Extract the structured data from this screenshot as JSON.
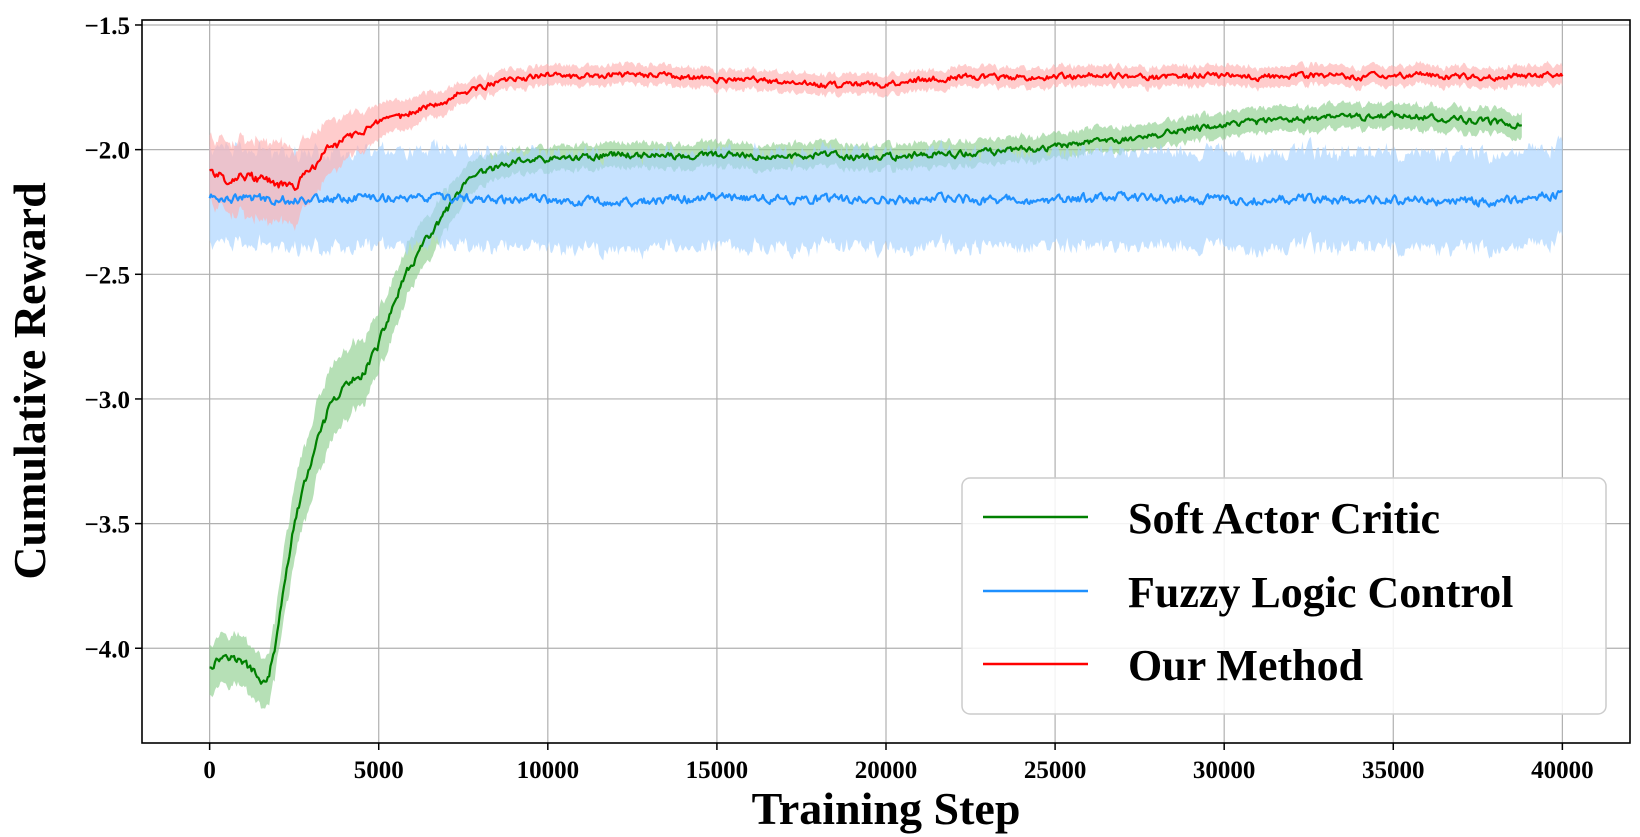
{
  "chart_data": {
    "type": "line",
    "title": "",
    "xlabel": "Training Step",
    "ylabel": "Cumulative Reward",
    "xlim": [
      -2000,
      42000
    ],
    "ylim": [
      -4.38,
      -1.48
    ],
    "x_ticks": [
      0,
      5000,
      10000,
      15000,
      20000,
      25000,
      30000,
      35000,
      40000
    ],
    "x_tick_labels": [
      "0",
      "5000",
      "10000",
      "15000",
      "20000",
      "25000",
      "30000",
      "35000",
      "40000"
    ],
    "y_ticks": [
      -4.0,
      -3.5,
      -3.0,
      -2.5,
      -2.0,
      -1.5
    ],
    "y_tick_labels": [
      "−4.0",
      "−3.5",
      "−3.0",
      "−2.5",
      "−2.0",
      "−1.5"
    ],
    "grid": true,
    "legend_position": "bottom-right",
    "series": [
      {
        "name": "Soft Actor Critic",
        "color": "#008000",
        "band_color": "#8fcf8f",
        "x": [
          0,
          500,
          1000,
          1500,
          1700,
          2000,
          2200,
          2500,
          3000,
          3500,
          4000,
          4500,
          5000,
          5500,
          6000,
          6500,
          7000,
          7500,
          8000,
          8500,
          9000,
          9500,
          10000,
          11000,
          12000,
          13000,
          14000,
          15000,
          16000,
          17000,
          18000,
          19000,
          20000,
          21000,
          22000,
          23000,
          24000,
          25000,
          26000,
          27000,
          28000,
          29000,
          30000,
          31000,
          32000,
          33000,
          34000,
          35000,
          36000,
          37000,
          38000,
          38800
        ],
        "y": [
          -4.07,
          -4.02,
          -4.06,
          -4.12,
          -4.15,
          -3.95,
          -3.75,
          -3.5,
          -3.25,
          -3.05,
          -2.95,
          -2.9,
          -2.78,
          -2.6,
          -2.45,
          -2.35,
          -2.25,
          -2.15,
          -2.1,
          -2.07,
          -2.05,
          -2.04,
          -2.04,
          -2.03,
          -2.02,
          -2.02,
          -2.03,
          -2.02,
          -2.03,
          -2.03,
          -2.02,
          -2.03,
          -2.03,
          -2.02,
          -2.02,
          -2.01,
          -2.0,
          -1.99,
          -1.97,
          -1.96,
          -1.94,
          -1.92,
          -1.9,
          -1.89,
          -1.88,
          -1.87,
          -1.87,
          -1.86,
          -1.87,
          -1.88,
          -1.89,
          -1.9
        ],
        "band": [
          0.1,
          0.1,
          0.1,
          0.1,
          0.1,
          0.12,
          0.14,
          0.15,
          0.15,
          0.15,
          0.14,
          0.13,
          0.12,
          0.11,
          0.1,
          0.09,
          0.08,
          0.07,
          0.06,
          0.05,
          0.05,
          0.05,
          0.05,
          0.05,
          0.05,
          0.05,
          0.05,
          0.05,
          0.05,
          0.05,
          0.05,
          0.05,
          0.05,
          0.05,
          0.05,
          0.05,
          0.05,
          0.05,
          0.05,
          0.05,
          0.05,
          0.05,
          0.05,
          0.05,
          0.05,
          0.05,
          0.05,
          0.05,
          0.05,
          0.05,
          0.05,
          0.05
        ]
      },
      {
        "name": "Fuzzy Logic Control",
        "color": "#1e90ff",
        "band_color": "#a8d2ff",
        "x": [
          0,
          2500,
          5000,
          7500,
          10000,
          12500,
          15000,
          17500,
          20000,
          22500,
          25000,
          27500,
          30000,
          32500,
          35000,
          37500,
          40000
        ],
        "y": [
          -2.19,
          -2.2,
          -2.19,
          -2.2,
          -2.2,
          -2.21,
          -2.19,
          -2.2,
          -2.2,
          -2.2,
          -2.2,
          -2.19,
          -2.2,
          -2.2,
          -2.2,
          -2.21,
          -2.18
        ],
        "band": [
          0.19,
          0.19,
          0.19,
          0.19,
          0.19,
          0.19,
          0.19,
          0.19,
          0.19,
          0.19,
          0.19,
          0.19,
          0.19,
          0.19,
          0.19,
          0.19,
          0.19
        ]
      },
      {
        "name": "Our Method",
        "color": "#ff0000",
        "band_color": "#ffb0b0",
        "x": [
          0,
          500,
          1000,
          1500,
          2000,
          2500,
          3000,
          3500,
          4000,
          4500,
          5000,
          5500,
          6000,
          6500,
          7000,
          7500,
          8000,
          8500,
          9000,
          9500,
          10000,
          11000,
          12000,
          13000,
          14000,
          15000,
          16000,
          17000,
          18000,
          19000,
          20000,
          21000,
          22000,
          23000,
          24000,
          25000,
          26000,
          27000,
          28000,
          29000,
          30000,
          31000,
          32000,
          33000,
          34000,
          35000,
          36000,
          37000,
          38000,
          39000,
          40000
        ],
        "y": [
          -2.08,
          -2.12,
          -2.1,
          -2.12,
          -2.14,
          -2.15,
          -2.08,
          -2.0,
          -1.96,
          -1.92,
          -1.9,
          -1.88,
          -1.85,
          -1.82,
          -1.8,
          -1.77,
          -1.75,
          -1.73,
          -1.72,
          -1.71,
          -1.7,
          -1.71,
          -1.7,
          -1.7,
          -1.71,
          -1.72,
          -1.72,
          -1.73,
          -1.74,
          -1.74,
          -1.74,
          -1.72,
          -1.71,
          -1.71,
          -1.71,
          -1.71,
          -1.7,
          -1.7,
          -1.71,
          -1.7,
          -1.7,
          -1.71,
          -1.7,
          -1.7,
          -1.71,
          -1.7,
          -1.7,
          -1.71,
          -1.71,
          -1.7,
          -1.7
        ],
        "band": [
          0.13,
          0.14,
          0.15,
          0.16,
          0.16,
          0.15,
          0.13,
          0.11,
          0.09,
          0.08,
          0.07,
          0.06,
          0.06,
          0.05,
          0.05,
          0.04,
          0.04,
          0.04,
          0.04,
          0.04,
          0.04,
          0.04,
          0.04,
          0.04,
          0.04,
          0.04,
          0.04,
          0.04,
          0.04,
          0.04,
          0.04,
          0.04,
          0.04,
          0.04,
          0.04,
          0.04,
          0.04,
          0.04,
          0.04,
          0.04,
          0.04,
          0.04,
          0.04,
          0.04,
          0.04,
          0.04,
          0.04,
          0.04,
          0.04,
          0.04,
          0.04
        ]
      }
    ]
  }
}
